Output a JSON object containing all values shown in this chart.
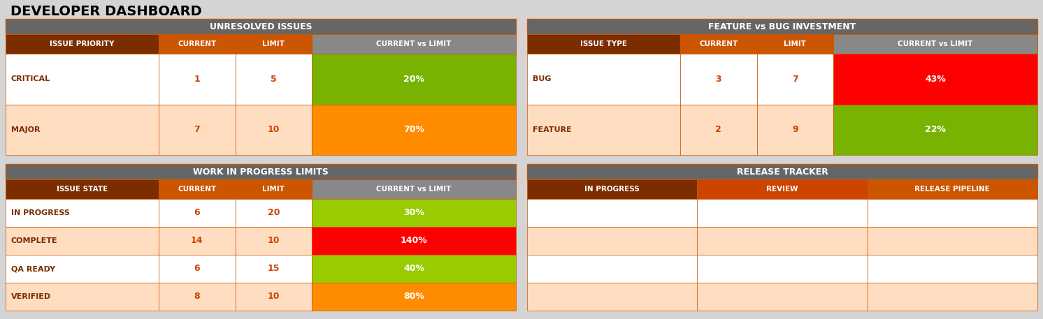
{
  "title": "DEVELOPER DASHBOARD",
  "bg_color": "#d4d4d4",
  "title_color": "#000000",
  "title_fontsize": 16,
  "table1": {
    "title": "UNRESOLVED ISSUES",
    "headers": [
      "ISSUE PRIORITY",
      "CURRENT",
      "LIMIT",
      "CURRENT vs LIMIT"
    ],
    "rows": [
      {
        "label": "CRITICAL",
        "current": "1",
        "limit": "5",
        "pct": "20%",
        "bar_color": "#77b300"
      },
      {
        "label": "MAJOR",
        "current": "7",
        "limit": "10",
        "pct": "70%",
        "bar_color": "#ff8c00"
      }
    ]
  },
  "table2": {
    "title": "FEATURE vs BUG INVESTMENT",
    "headers": [
      "ISSUE TYPE",
      "CURRENT",
      "LIMIT",
      "CURRENT vs LIMIT"
    ],
    "rows": [
      {
        "label": "BUG",
        "current": "3",
        "limit": "7",
        "pct": "43%",
        "bar_color": "#ff0000"
      },
      {
        "label": "FEATURE",
        "current": "2",
        "limit": "9",
        "pct": "22%",
        "bar_color": "#77b300"
      }
    ]
  },
  "table3": {
    "title": "WORK IN PROGRESS LIMITS",
    "headers": [
      "ISSUE STATE",
      "CURRENT",
      "LIMIT",
      "CURRENT vs LIMIT"
    ],
    "rows": [
      {
        "label": "IN PROGRESS",
        "current": "6",
        "limit": "20",
        "pct": "30%",
        "bar_color": "#99cc00"
      },
      {
        "label": "COMPLETE",
        "current": "14",
        "limit": "10",
        "pct": "140%",
        "bar_color": "#ff0000"
      },
      {
        "label": "QA READY",
        "current": "6",
        "limit": "15",
        "pct": "40%",
        "bar_color": "#99cc00"
      },
      {
        "label": "VERIFIED",
        "current": "8",
        "limit": "10",
        "pct": "80%",
        "bar_color": "#ff8c00"
      }
    ]
  },
  "table4": {
    "title": "RELEASE TRACKER",
    "headers": [
      "IN PROGRESS",
      "REVIEW",
      "RELEASE PIPELINE"
    ],
    "rows": [
      {
        "cols": [
          "",
          "",
          ""
        ]
      },
      {
        "cols": [
          "",
          "",
          ""
        ]
      },
      {
        "cols": [
          "",
          "",
          ""
        ]
      },
      {
        "cols": [
          "",
          "",
          ""
        ]
      }
    ]
  },
  "colors": {
    "section_title_bg": "#666666",
    "section_title_text": "#ffffff",
    "col_header_bg1": "#7b2d00",
    "col_header_bg2": "#cc5500",
    "col_header_bg3": "#cc5500",
    "col_header_bg4": "#888888",
    "col_header_text": "#ffffff",
    "row_odd_bg": "#ffffff",
    "row_even_bg": "#ffddc0",
    "row_text": "#cc4400",
    "label_text": "#7b2d00",
    "border_color": "#cc5500",
    "pct_text": "#ffffff"
  }
}
